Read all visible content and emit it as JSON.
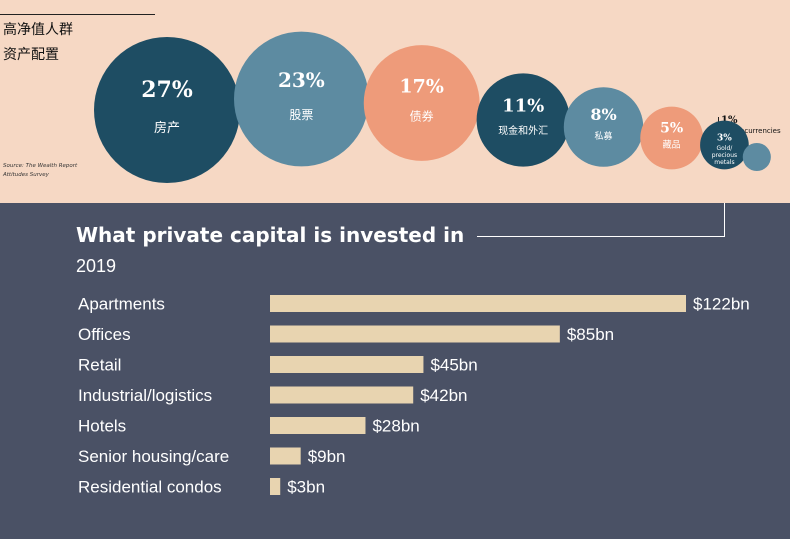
{
  "top_panel": {
    "title_line1": "高净值人群",
    "title_line2": "资产配置",
    "source_line1": "Source: The Wealth Report",
    "source_line2": "Attitudes Survey",
    "crypto_pct": "1%",
    "crypto_label": "Cryptocurrencies"
  },
  "bottom_panel": {
    "title": "What private capital is invested in",
    "subtitle": "2019"
  },
  "colors": {
    "top_bg": "#F6D8C4",
    "bottom_bg": "#4A5165",
    "bubble_dark": "#1E4D63",
    "bubble_mid": "#5D8BA1",
    "bubble_salmon": "#EE9B7A",
    "bar": "#E8D4B0"
  },
  "chart_data": [
    {
      "type": "bubble",
      "title": "",
      "categories": [
        "房产",
        "股票",
        "债券",
        "现金和外汇",
        "私募",
        "藏品",
        "Gold/ precious metals",
        "Cryptocurrencies"
      ],
      "percent_labels": [
        "27%",
        "23%",
        "17%",
        "11%",
        "8%",
        "5%",
        "3%",
        "1%"
      ],
      "values": [
        27,
        23,
        17,
        11,
        8,
        5,
        3,
        1
      ],
      "unit": "%",
      "series_colors": [
        "#1E4D63",
        "#5D8BA1",
        "#EE9B7A",
        "#1E4D63",
        "#5D8BA1",
        "#EE9B7A",
        "#1E4D63",
        "#5D8BA1"
      ]
    },
    {
      "type": "bar",
      "orientation": "horizontal",
      "title": "What private capital is invested in",
      "subtitle": "2019",
      "categories": [
        "Apartments",
        "Offices",
        "Retail",
        "Industrial/logistics",
        "Hotels",
        "Senior housing/care",
        "Residential condos"
      ],
      "values": [
        122,
        85,
        45,
        42,
        28,
        9,
        3
      ],
      "value_labels": [
        "$122bn",
        "$85bn",
        "$45bn",
        "$42bn",
        "$28bn",
        "$9bn",
        "$3bn"
      ],
      "unit": "$bn",
      "xlim": [
        0,
        122
      ],
      "grid": false
    }
  ]
}
